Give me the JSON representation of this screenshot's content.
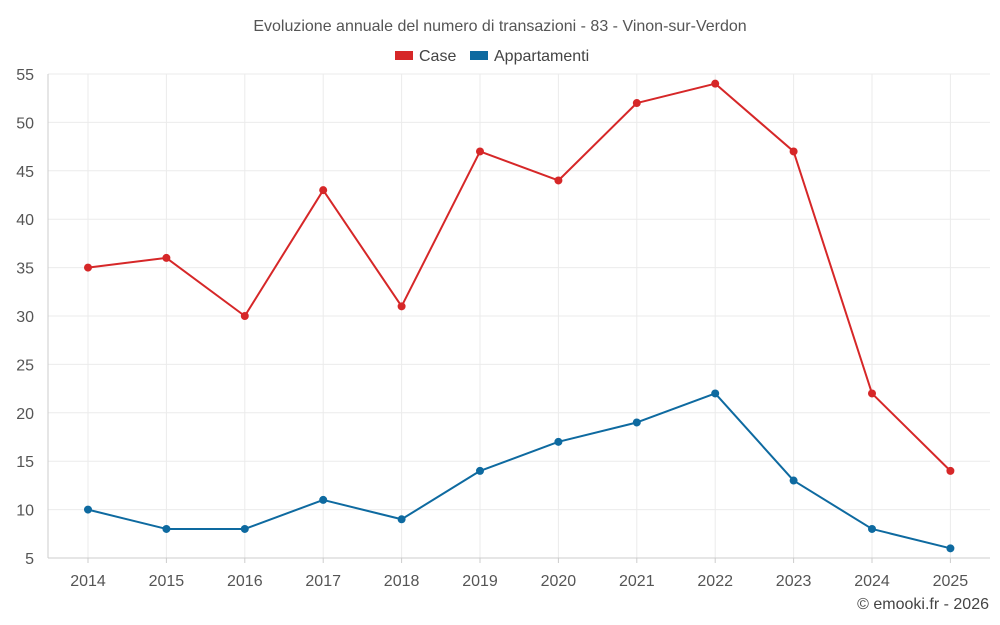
{
  "chart_data": {
    "type": "line",
    "title": "Evoluzione annuale del numero di transazioni - 83 - Vinon-sur-Verdon",
    "categories": [
      "2014",
      "2015",
      "2016",
      "2017",
      "2018",
      "2019",
      "2020",
      "2021",
      "2022",
      "2023",
      "2024",
      "2025"
    ],
    "series": [
      {
        "name": "Case",
        "color": "#d62728",
        "values": [
          35,
          36,
          30,
          43,
          31,
          47,
          44,
          52,
          54,
          47,
          22,
          14
        ]
      },
      {
        "name": "Appartamenti",
        "color": "#0e6aa0",
        "values": [
          10,
          8,
          8,
          11,
          9,
          14,
          17,
          19,
          22,
          13,
          8,
          6
        ]
      }
    ],
    "ylim": [
      5,
      55
    ],
    "yticks": [
      5,
      10,
      15,
      20,
      25,
      30,
      35,
      40,
      45,
      50,
      55
    ],
    "grid": true,
    "legend_position": "top-center",
    "xlabel": "",
    "ylabel": ""
  },
  "credit": "© emooki.fr - 2026"
}
